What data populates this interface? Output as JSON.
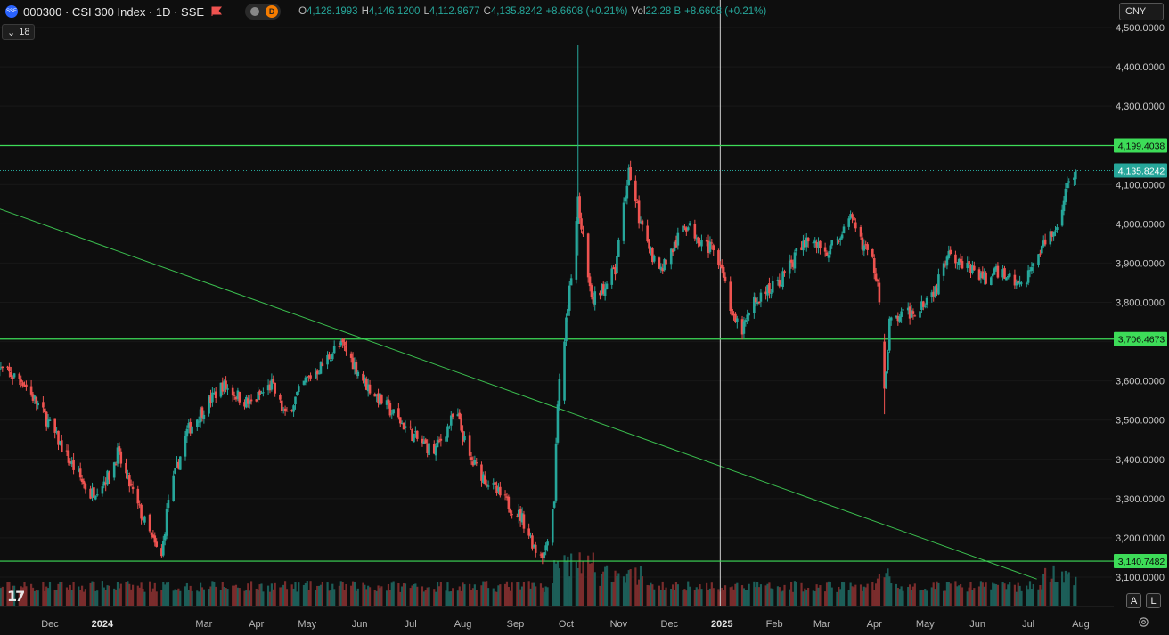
{
  "header": {
    "symbol_badge": "SSE",
    "title": "000300 · CSI 300 Index · 1D · SSE",
    "pill_letter": "D",
    "ohlc": [
      {
        "k": "O",
        "v": "4,128.1993"
      },
      {
        "k": "H",
        "v": "4,146.1200"
      },
      {
        "k": "L",
        "v": "4,112.9677"
      },
      {
        "k": "C",
        "v": "4,135.8242"
      },
      {
        "k": "",
        "v": "+8.6608 (+0.21%)"
      },
      {
        "k": "Vol",
        "v": "22.28 B"
      },
      {
        "k": "",
        "v": "+8.6608 (+0.21%)"
      }
    ],
    "indicator_count": "18",
    "currency": "CNY"
  },
  "footer": {
    "logo": "17",
    "auto_scale": "A",
    "log_scale": "L"
  },
  "colors": {
    "up": "#26a69a",
    "down": "#ef5350",
    "hline": "#3ddc58",
    "trend": "#3bbf4f",
    "current": "#26a69a"
  },
  "chart_data": {
    "type": "candlestick",
    "y_ticks": [
      3100,
      3200,
      3300,
      3400,
      3500,
      3600,
      3700,
      3800,
      3900,
      4000,
      4100,
      4200,
      4300,
      4400,
      4500
    ],
    "y_tick_labels": [
      "3,100.0000",
      "3,200.0000",
      "3,300.0000",
      "3,400.0000",
      "3,500.0000",
      "3,600.0000",
      "3,700.0000",
      "3,800.0000",
      "3,900.0000",
      "4,000.0000",
      "4,100.0000",
      "4,200.0000",
      "4,300.0000",
      "4,400.0000",
      "4,500.0000"
    ],
    "x_labels": [
      "Dec",
      "2024",
      "Mar",
      "Apr",
      "May",
      "Jun",
      "Jul",
      "Aug",
      "Sep",
      "Oct",
      "Nov",
      "Dec",
      "2025",
      "Feb",
      "Mar",
      "Apr",
      "May",
      "Jun",
      "Jul",
      "Aug"
    ],
    "x_label_dates": [
      "2023-12-01",
      "2024-01-01",
      "2024-03-01",
      "2024-04-01",
      "2024-05-01",
      "2024-06-01",
      "2024-07-01",
      "2024-08-01",
      "2024-09-01",
      "2024-10-01",
      "2024-11-01",
      "2024-12-01",
      "2025-01-01",
      "2025-02-01",
      "2025-03-01",
      "2025-04-01",
      "2025-05-01",
      "2025-06-01",
      "2025-07-01",
      "2025-08-01"
    ],
    "horizontal_levels": [
      {
        "value": 4199.4038,
        "label": "4,199.4038"
      },
      {
        "value": 3706.4673,
        "label": "3,706.4673"
      },
      {
        "value": 3140.7482,
        "label": "3,140.7482"
      }
    ],
    "current_price": {
      "value": 4135.8242,
      "label": "4,135.8242"
    },
    "trendline": {
      "from": {
        "date": "2023-10-31",
        "value": 4040
      },
      "to": {
        "date": "2025-07-06",
        "value": 3095
      }
    },
    "crosshair_date": "2024-12-31",
    "anchors": [
      [
        "2023-10-31",
        3632
      ],
      [
        "2023-11-15",
        3600
      ],
      [
        "2023-11-28",
        3510
      ],
      [
        "2023-12-12",
        3400
      ],
      [
        "2023-12-25",
        3310
      ],
      [
        "2024-01-05",
        3360
      ],
      [
        "2024-01-10",
        3415
      ],
      [
        "2024-01-22",
        3280
      ],
      [
        "2024-02-02",
        3170
      ],
      [
        "2024-02-05",
        3150
      ],
      [
        "2024-02-09",
        3300
      ],
      [
        "2024-02-20",
        3470
      ],
      [
        "2024-03-01",
        3530
      ],
      [
        "2024-03-12",
        3590
      ],
      [
        "2024-03-28",
        3540
      ],
      [
        "2024-04-10",
        3590
      ],
      [
        "2024-04-18",
        3510
      ],
      [
        "2024-04-30",
        3600
      ],
      [
        "2024-05-10",
        3640
      ],
      [
        "2024-05-17",
        3680
      ],
      [
        "2024-05-22",
        3690
      ],
      [
        "2024-06-05",
        3590
      ],
      [
        "2024-06-20",
        3520
      ],
      [
        "2024-07-05",
        3450
      ],
      [
        "2024-07-15",
        3420
      ],
      [
        "2024-07-28",
        3520
      ],
      [
        "2024-08-05",
        3400
      ],
      [
        "2024-08-20",
        3320
      ],
      [
        "2024-09-05",
        3250
      ],
      [
        "2024-09-13",
        3170
      ],
      [
        "2024-09-18",
        3160
      ],
      [
        "2024-09-24",
        3300
      ],
      [
        "2024-09-26",
        3550
      ],
      [
        "2024-09-30",
        3700
      ],
      [
        "2024-10-08",
        4050
      ],
      [
        "2024-10-16",
        3800
      ],
      [
        "2024-10-30",
        3880
      ],
      [
        "2024-11-07",
        4140
      ],
      [
        "2024-11-15",
        3980
      ],
      [
        "2024-11-25",
        3880
      ],
      [
        "2024-12-05",
        3950
      ],
      [
        "2024-12-10",
        4000
      ],
      [
        "2024-12-20",
        3960
      ],
      [
        "2024-12-31",
        3910
      ],
      [
        "2025-01-08",
        3750
      ],
      [
        "2025-01-13",
        3730
      ],
      [
        "2025-01-20",
        3800
      ],
      [
        "2025-02-05",
        3860
      ],
      [
        "2025-02-20",
        3960
      ],
      [
        "2025-03-05",
        3930
      ],
      [
        "2025-03-18",
        4010
      ],
      [
        "2025-03-31",
        3900
      ],
      [
        "2025-04-03",
        3860
      ],
      [
        "2025-04-07",
        3560
      ],
      [
        "2025-04-10",
        3750
      ],
      [
        "2025-04-25",
        3780
      ],
      [
        "2025-05-08",
        3840
      ],
      [
        "2025-05-15",
        3940
      ],
      [
        "2025-05-22",
        3900
      ],
      [
        "2025-06-05",
        3860
      ],
      [
        "2025-06-15",
        3880
      ],
      [
        "2025-06-27",
        3840
      ],
      [
        "2025-07-10",
        3950
      ],
      [
        "2025-07-18",
        4000
      ],
      [
        "2025-07-25",
        4110
      ],
      [
        "2025-07-29",
        4136
      ]
    ],
    "spikes": [
      {
        "date": "2024-10-08",
        "open": 4000,
        "high": 4456,
        "low": 3920,
        "close": 4070
      },
      {
        "date": "2025-04-07",
        "open": 3700,
        "high": 3720,
        "low": 3515,
        "close": 3580
      },
      {
        "date": "2024-09-30",
        "open": 3550,
        "high": 3710,
        "low": 3540,
        "close": 3700
      }
    ],
    "volume_ylim": [
      0,
      65
    ]
  }
}
